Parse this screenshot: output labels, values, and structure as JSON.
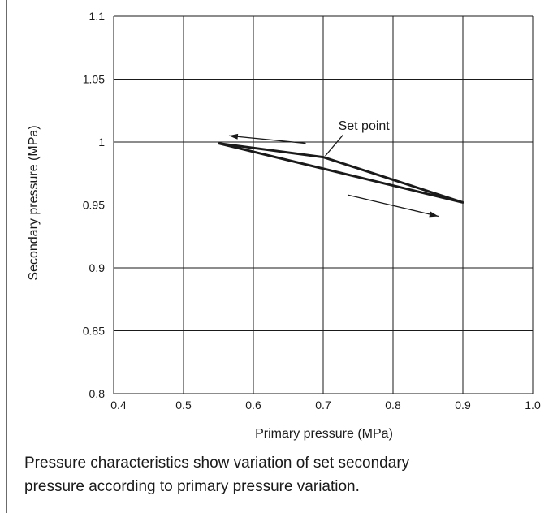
{
  "chart_data": {
    "type": "line",
    "xlabel": "Primary pressure (MPa)",
    "ylabel": "Secondary pressure (MPa)",
    "xlim": [
      0.4,
      1.0
    ],
    "ylim": [
      0.8,
      1.1
    ],
    "x_ticks": [
      "0.4",
      "0.5",
      "0.6",
      "0.7",
      "0.8",
      "0.9",
      "1.0"
    ],
    "y_ticks": [
      "0.8",
      "0.85",
      "0.9",
      "0.95",
      "1",
      "1.05",
      "1.1"
    ],
    "grid": true,
    "series": [
      {
        "x": [
          0.55,
          0.7,
          0.9,
          0.55
        ],
        "y": [
          0.999,
          0.988,
          0.952,
          0.999
        ]
      }
    ],
    "arrows": [
      {
        "from": [
          0.675,
          0.999
        ],
        "to": [
          0.565,
          1.005
        ]
      },
      {
        "from": [
          0.735,
          0.958
        ],
        "to": [
          0.865,
          0.941
        ]
      }
    ],
    "annotations": [
      {
        "text": "Set point",
        "at": [
          0.703,
          0.989
        ]
      }
    ]
  },
  "caption": {
    "line1": "Pressure characteristics show variation of set secondary",
    "line2": "pressure according to primary pressure variation."
  },
  "colors": {
    "line": "#1a1a1a",
    "grid": "#1a1a1a",
    "frame": "#6b6b6b"
  }
}
